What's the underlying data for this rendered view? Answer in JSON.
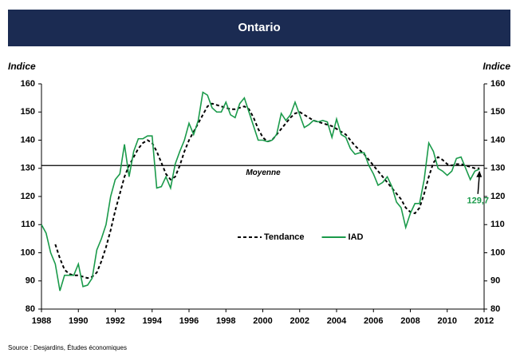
{
  "chart_data": {
    "type": "line",
    "title": "Ontario",
    "ylabel": "Indice",
    "y2label": "Indice",
    "source": "Source : Desjardins, Études économiques",
    "xlim": [
      1988,
      2012
    ],
    "xticks": [
      1988,
      1990,
      1992,
      1994,
      1996,
      1998,
      2000,
      2002,
      2004,
      2006,
      2008,
      2010,
      2012
    ],
    "ylim": [
      80,
      160
    ],
    "yticks": [
      80,
      90,
      100,
      110,
      120,
      130,
      140,
      150,
      160
    ],
    "y2lim": [
      80,
      160
    ],
    "y2ticks": [
      80,
      90,
      100,
      110,
      120,
      130,
      140,
      150,
      160
    ],
    "legend": "center",
    "reference_line": {
      "label": "Moyenne",
      "value": 131
    },
    "annotation": {
      "label": "129,7",
      "value": 129.7
    },
    "x": [
      1988,
      1988.25,
      1988.5,
      1988.75,
      1989,
      1989.25,
      1989.5,
      1989.75,
      1990,
      1990.25,
      1990.5,
      1990.75,
      1991,
      1991.25,
      1991.5,
      1991.75,
      1992,
      1992.25,
      1992.5,
      1992.75,
      1993,
      1993.25,
      1993.5,
      1993.75,
      1994,
      1994.25,
      1994.5,
      1994.75,
      1995,
      1995.25,
      1995.5,
      1995.75,
      1996,
      1996.25,
      1996.5,
      1996.75,
      1997,
      1997.25,
      1997.5,
      1997.75,
      1998,
      1998.25,
      1998.5,
      1998.75,
      1999,
      1999.25,
      1999.5,
      1999.75,
      2000,
      2000.25,
      2000.5,
      2000.75,
      2001,
      2001.25,
      2001.5,
      2001.75,
      2002,
      2002.25,
      2002.5,
      2002.75,
      2003,
      2003.25,
      2003.5,
      2003.75,
      2004,
      2004.25,
      2004.5,
      2004.75,
      2005,
      2005.25,
      2005.5,
      2005.75,
      2006,
      2006.25,
      2006.5,
      2006.75,
      2007,
      2007.25,
      2007.5,
      2007.75,
      2008,
      2008.25,
      2008.5,
      2008.75,
      2009,
      2009.25,
      2009.5,
      2009.75,
      2010,
      2010.25,
      2010.5,
      2010.75,
      2011,
      2011.25,
      2011.5,
      2011.75
    ],
    "series": [
      {
        "name": "Tendance",
        "color": "#000000",
        "dashed": true,
        "values": [
          null,
          null,
          null,
          103,
          98,
          94,
          92.5,
          92,
          92,
          91.5,
          91,
          91.5,
          93,
          97,
          102,
          108,
          115,
          121,
          127,
          131,
          134,
          137,
          139,
          140,
          139,
          136,
          132,
          128,
          126,
          127,
          131,
          136,
          140,
          143,
          146,
          149,
          152,
          153,
          152.5,
          152,
          151.5,
          151,
          151,
          151.5,
          152,
          151,
          148,
          144,
          141,
          139.5,
          140,
          142,
          144,
          146,
          148,
          149.5,
          150,
          149,
          148,
          147,
          146.5,
          146,
          145.5,
          145,
          144,
          143,
          142,
          140,
          138,
          136.5,
          135,
          133,
          131,
          129,
          127,
          125,
          123,
          121,
          119,
          116,
          114.5,
          114,
          116,
          121,
          127,
          132,
          134,
          133,
          131.5,
          131,
          131.5,
          131.5,
          131,
          130.5,
          130,
          130
        ]
      },
      {
        "name": "IAD",
        "color": "#1a9a4a",
        "dashed": false,
        "values": [
          110,
          107,
          100,
          96,
          86.5,
          92,
          92,
          92,
          96,
          88,
          88.5,
          91,
          101,
          105,
          110,
          120,
          126,
          128,
          138.5,
          127,
          136,
          140.5,
          140.5,
          141.5,
          141.5,
          123,
          123.5,
          127,
          123,
          131.5,
          136,
          140,
          146,
          142,
          147,
          157,
          156,
          151.5,
          150,
          150,
          153.5,
          149,
          148,
          153,
          155,
          150,
          145,
          140,
          140,
          139.5,
          140,
          142,
          149.5,
          147,
          149,
          153.5,
          149,
          144.5,
          145.5,
          147,
          146.5,
          147,
          146.5,
          141,
          147.5,
          142,
          141,
          137,
          135,
          135.5,
          135.5,
          131,
          128,
          124,
          125,
          127,
          123.5,
          118,
          116,
          109,
          114,
          117.5,
          117.5,
          126,
          139,
          136,
          130,
          129,
          127.5,
          129,
          133.5,
          134,
          130,
          126,
          129,
          129.7
        ]
      }
    ]
  }
}
